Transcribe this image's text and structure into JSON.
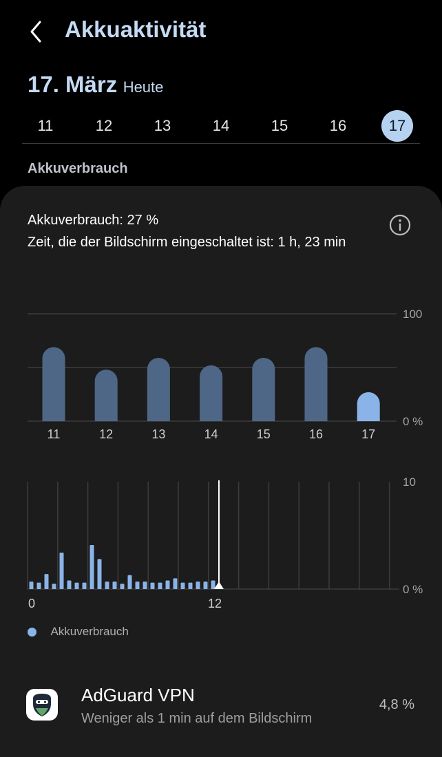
{
  "header": {
    "title": "Akkuaktivität",
    "back_icon": "chevron-left-icon"
  },
  "date": {
    "main": "17. März",
    "sub": "Heute"
  },
  "days": [
    "11",
    "12",
    "13",
    "14",
    "15",
    "16",
    "17"
  ],
  "selected_day": "17",
  "section_label": "Akkuverbrauch",
  "summary": {
    "usage": "Akkuverbrauch: 27 %",
    "screen_time": "Zeit, die der Bildschirm eingeschaltet ist: 1 h, 23 min",
    "info_icon": "info-icon"
  },
  "chart_data": [
    {
      "type": "bar",
      "categories": [
        "11",
        "12",
        "13",
        "14",
        "15",
        "16",
        "17"
      ],
      "values": [
        69,
        48,
        59,
        52,
        59,
        69,
        27
      ],
      "ylim": [
        0,
        100
      ],
      "ytick_labels": [
        "100",
        "0 %"
      ],
      "highlight_category": "17",
      "colors": {
        "bar": "#4f6786",
        "highlight": "#8ab4e8",
        "grid": "#3d3d3d"
      }
    },
    {
      "type": "bar",
      "categories": [
        "0",
        "",
        "",
        "",
        "",
        "",
        "",
        "",
        "",
        "",
        "",
        "",
        "",
        "",
        "",
        "",
        "",
        "",
        "",
        "",
        "",
        "",
        "",
        "",
        "12"
      ],
      "values": [
        0.7,
        0.6,
        1.4,
        0.5,
        3.4,
        0.8,
        0.6,
        0.6,
        4.1,
        2.8,
        0.7,
        0.7,
        0.5,
        1.3,
        0.7,
        0.7,
        0.6,
        0.6,
        0.8,
        1.0,
        0.6,
        0.6,
        0.7,
        0.7,
        0.8
      ],
      "ylim": [
        0,
        10
      ],
      "ytick_labels": [
        "10",
        "0 %"
      ],
      "xtick_labels": [
        "0",
        "12"
      ],
      "current_position_label": "12",
      "colors": {
        "bar": "#8ab4e8",
        "marker": "#ffffff",
        "grid": "#3d3d3d"
      }
    }
  ],
  "legend": {
    "label": "Akkuverbrauch",
    "color": "#8ab4e8"
  },
  "app": {
    "name": "AdGuard VPN",
    "subtitle": "Weniger als 1 min auf dem Bildschirm",
    "percent": "4,8 %",
    "icon": "adguard-vpn-icon"
  }
}
